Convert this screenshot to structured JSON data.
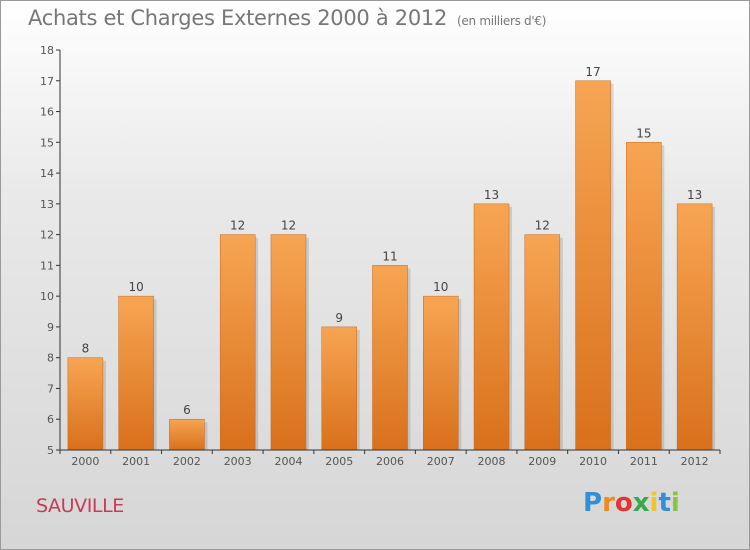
{
  "header": {
    "title": "Achats et Charges Externes 2000 à 2012",
    "subtitle": "(en milliers d'€)"
  },
  "footer": {
    "city": "SAUVILLE",
    "logo_letters": [
      "P",
      "r",
      "o",
      "x",
      "i",
      "t",
      "i"
    ]
  },
  "colors": {
    "bar_top": "#f7a553",
    "bar_bottom": "#d9701b",
    "axis": "#333333",
    "city": "#c63b5a"
  },
  "chart_data": {
    "type": "bar",
    "title": "Achats et Charges Externes 2000 à 2012",
    "subtitle": "(en milliers d'€)",
    "categories": [
      "2000",
      "2001",
      "2002",
      "2003",
      "2004",
      "2005",
      "2006",
      "2007",
      "2008",
      "2009",
      "2010",
      "2011",
      "2012"
    ],
    "values": [
      8,
      10,
      6,
      12,
      12,
      9,
      11,
      10,
      13,
      12,
      17,
      15,
      13
    ],
    "ylim": [
      5,
      18
    ],
    "yticks": [
      5,
      6,
      7,
      8,
      9,
      10,
      11,
      12,
      13,
      14,
      15,
      16,
      17,
      18
    ],
    "grid": false,
    "data_labels": true
  }
}
